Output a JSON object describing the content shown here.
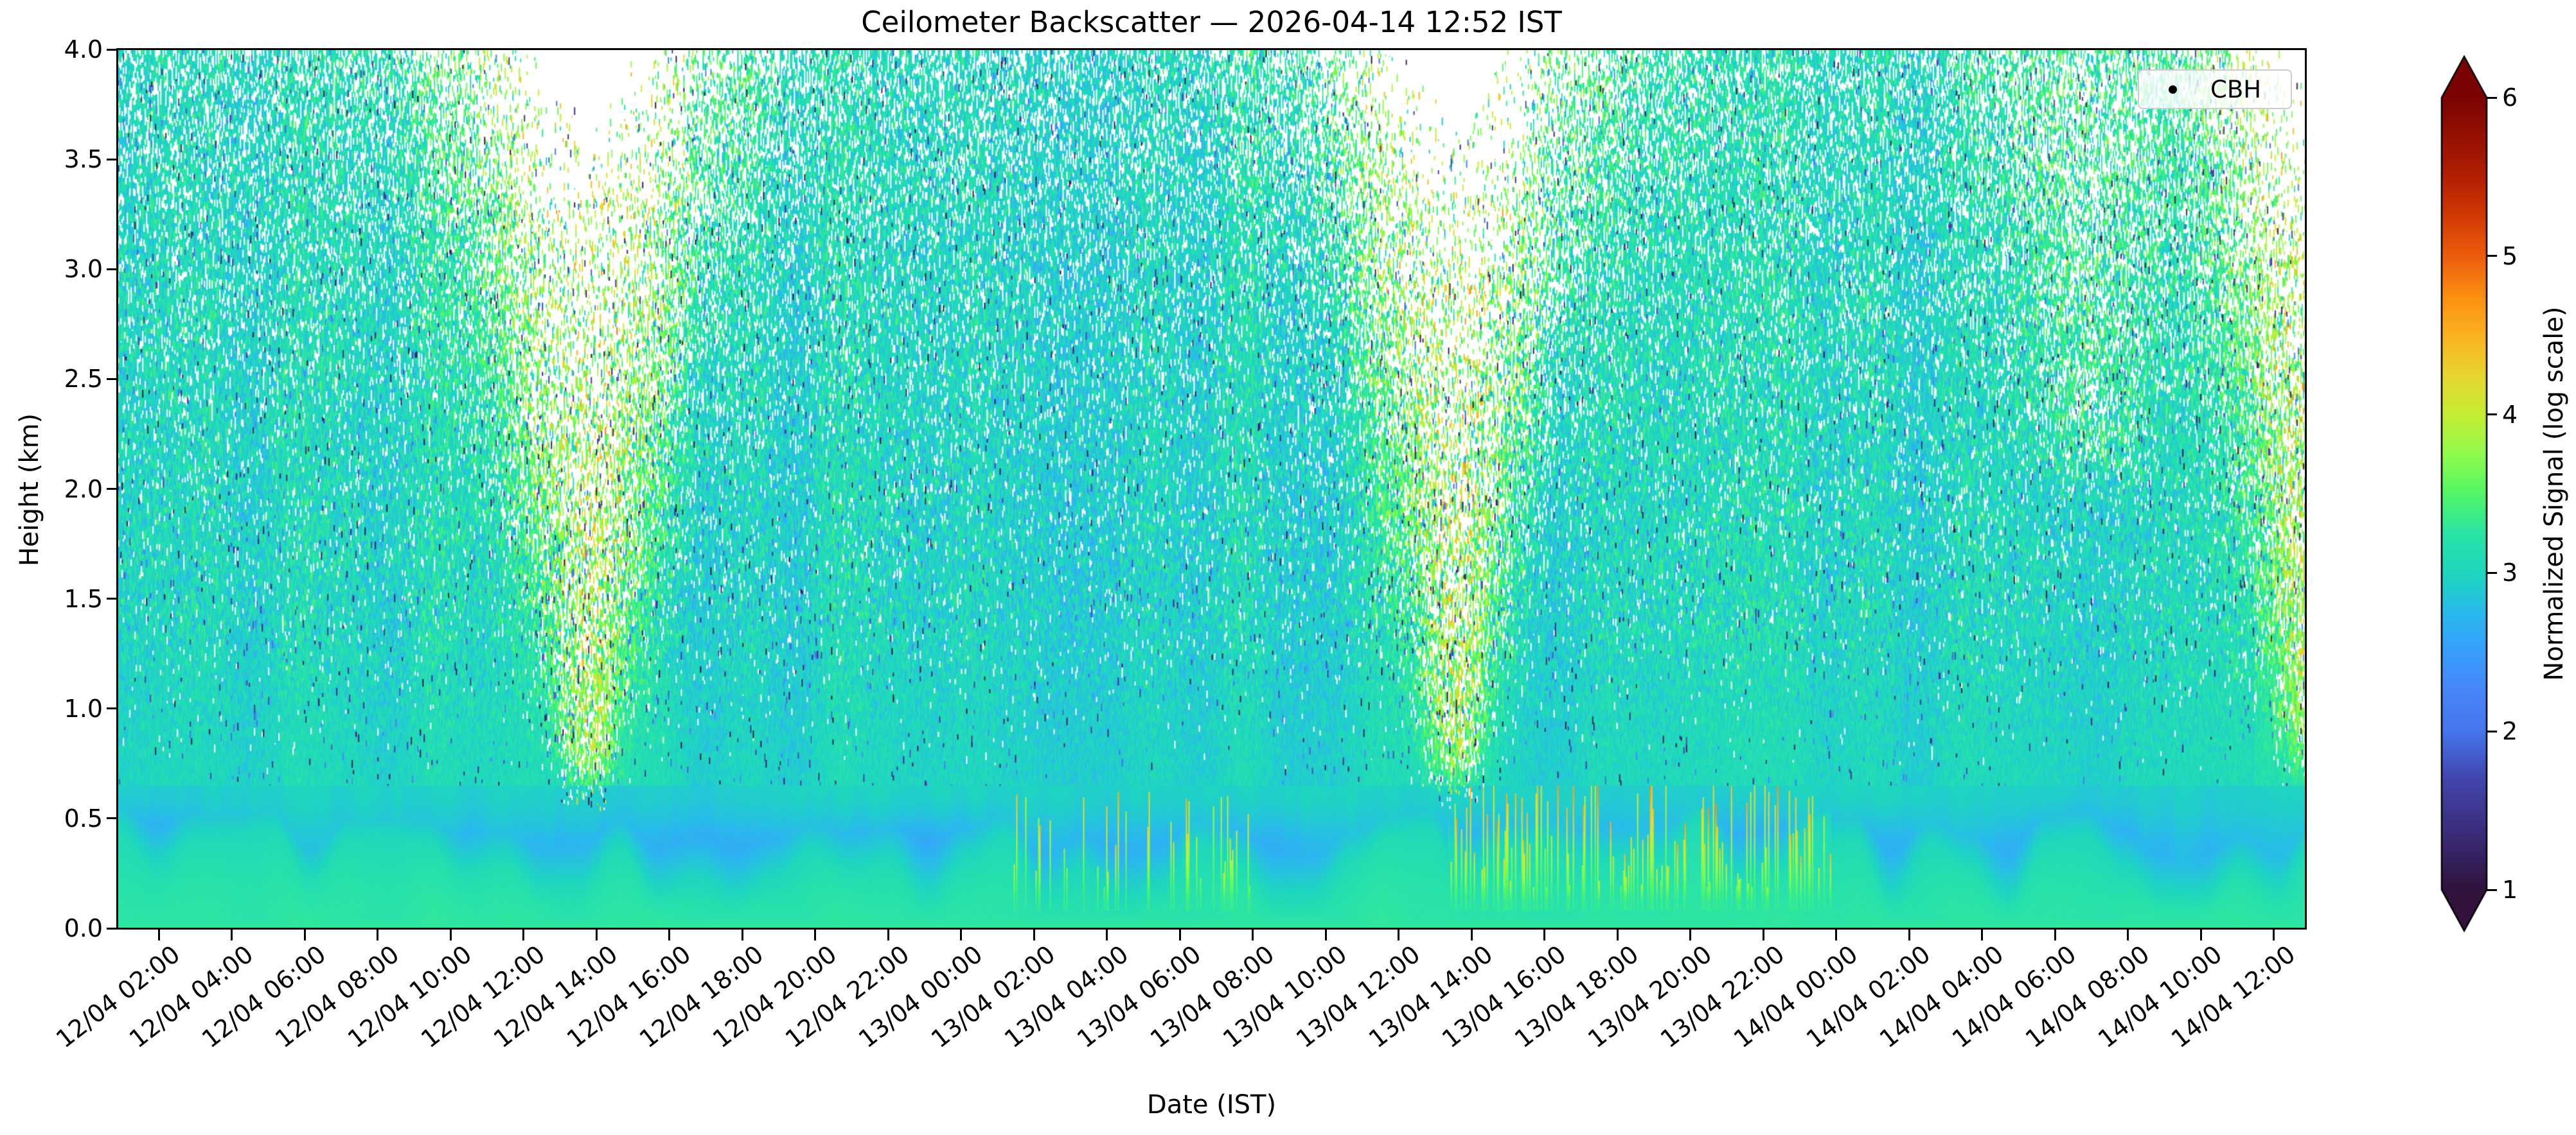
{
  "title": "Ceilometer Backscatter — 2026-04-14 12:52 IST",
  "axes": {
    "xlabel": "Date (IST)",
    "ylabel": "Height (km)",
    "x_tick_labels": [
      "12/04 02:00",
      "12/04 04:00",
      "12/04 06:00",
      "12/04 08:00",
      "12/04 10:00",
      "12/04 12:00",
      "12/04 14:00",
      "12/04 16:00",
      "12/04 18:00",
      "12/04 20:00",
      "12/04 22:00",
      "13/04 00:00",
      "13/04 02:00",
      "13/04 04:00",
      "13/04 06:00",
      "13/04 08:00",
      "13/04 10:00",
      "13/04 12:00",
      "13/04 14:00",
      "13/04 16:00",
      "13/04 18:00",
      "13/04 20:00",
      "13/04 22:00",
      "14/04 00:00",
      "14/04 02:00",
      "14/04 04:00",
      "14/04 06:00",
      "14/04 08:00",
      "14/04 10:00",
      "14/04 12:00"
    ],
    "y_tick_labels": [
      "0.0",
      "0.5",
      "1.0",
      "1.5",
      "2.0",
      "2.5",
      "3.0",
      "3.5",
      "4.0"
    ]
  },
  "legend": {
    "label": "CBH",
    "marker": "black-dot"
  },
  "colorbar": {
    "label": "Normalized Signal (log scale)",
    "ticks": [
      "1",
      "2",
      "3",
      "4",
      "5",
      "6"
    ],
    "vmin": 1,
    "vmax": 6,
    "extend": "both",
    "colormap": "turbo",
    "stops": [
      [
        0.0,
        "#30123b"
      ],
      [
        0.07,
        "#3a2c79"
      ],
      [
        0.14,
        "#4146ac"
      ],
      [
        0.2,
        "#4675ed"
      ],
      [
        0.25,
        "#4686fb"
      ],
      [
        0.3,
        "#399efd"
      ],
      [
        0.35,
        "#2ab9ed"
      ],
      [
        0.4,
        "#1ed7be"
      ],
      [
        0.45,
        "#2ae4a7"
      ],
      [
        0.5,
        "#52f667"
      ],
      [
        0.55,
        "#90fb4d"
      ],
      [
        0.6,
        "#c5ee33"
      ],
      [
        0.65,
        "#e8d631"
      ],
      [
        0.7,
        "#fbb321"
      ],
      [
        0.75,
        "#fd8f11"
      ],
      [
        0.8,
        "#ec5e0d"
      ],
      [
        0.85,
        "#d23a05"
      ],
      [
        0.9,
        "#b22003"
      ],
      [
        0.95,
        "#961102"
      ],
      [
        1.0,
        "#7a0403"
      ]
    ]
  },
  "chart_data": {
    "type": "heatmap",
    "title": "Ceilometer Backscatter — 2026-04-14 12:52 IST",
    "xlabel": "Date (IST)",
    "ylabel": "Height (km)",
    "x_window": {
      "start": "12/04 00:52",
      "end": "14/04 12:52",
      "span_hours": 60,
      "tick_interval_hours": 2
    },
    "y_range_km": [
      0.0,
      4.0
    ],
    "value_range": [
      1,
      6
    ],
    "background_signal": 3.0,
    "description": "Time-height curtain of normalized ceilometer backscatter (log scale). Teal background ~3. Speckle noise and white dropouts increase with altitude. Cone-shaped daytime solar-noise plumes (white/yellow speckle) around midday 12/04 and 13/04 reaching down to ~0.5 km, plus one clipped at the right edge on 14/04. Smooth boundary layer below ~0.5 km: green surface film, blue band ~0.2-0.45 km, green mounds, and yellow-orange aerosol spikes to ~0.7 km overnight and afternoon-evening 13/04.",
    "noise_plumes": [
      {
        "center_hour": 12.9,
        "strength": 1.0,
        "base_km": 0.48,
        "sigma_low_h": 0.55,
        "sigma_top_h": 2.9
      },
      {
        "center_hour": 36.7,
        "strength": 1.0,
        "base_km": 0.5,
        "sigma_low_h": 0.55,
        "sigma_top_h": 2.8
      },
      {
        "center_hour": 54.0,
        "strength": 0.38,
        "base_km": 1.9,
        "sigma_low_h": 0.8,
        "sigma_top_h": 2.2
      },
      {
        "center_hour": 60.4,
        "strength": 0.95,
        "base_km": 0.6,
        "sigma_low_h": 0.7,
        "sigma_top_h": 2.6
      }
    ],
    "aerosol_spike_periods": [
      {
        "start_hour": 24.5,
        "end_hour": 31.5,
        "density": 0.2,
        "max_height_km": 0.62,
        "max_value": 4.5
      },
      {
        "start_hour": 36.5,
        "end_hour": 47.0,
        "density": 0.4,
        "max_height_km": 0.72,
        "max_value": 4.8
      }
    ],
    "boundary_layer": {
      "surface_value": 3.3,
      "mound_value": 3.25,
      "blue_band_value": 2.5,
      "blue_band_center_km": 0.33,
      "mound_top_range_km": [
        0.1,
        0.5
      ]
    },
    "speckle": {
      "white_dropout_max_fraction": 0.9,
      "dark_speck_value_range": [
        1.0,
        2.4
      ],
      "smooth_below_km": 0.65
    },
    "cbh_points": []
  }
}
